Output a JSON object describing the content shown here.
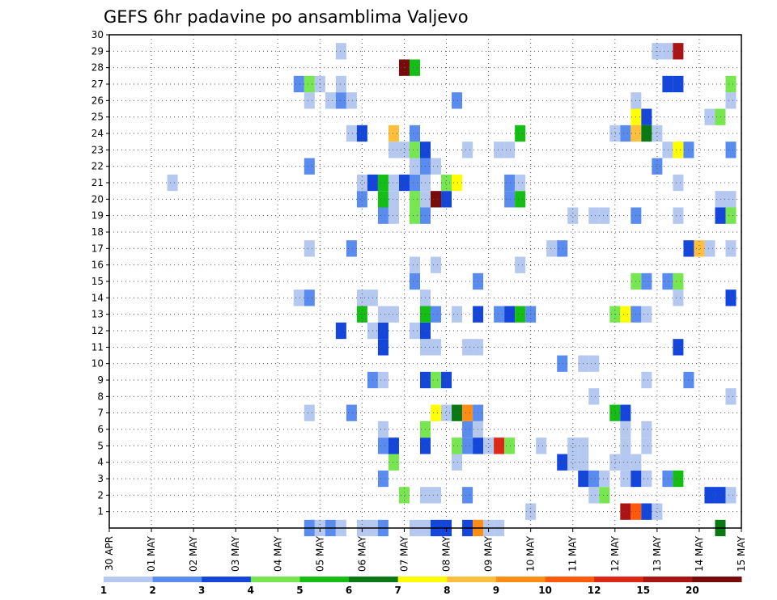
{
  "chart_data": {
    "type": "heatmap",
    "title": "GEFS 6hr padavine po ansamblima Valjevo",
    "x_tick_labels": [
      "30 APR",
      "01 MAY",
      "02 MAY",
      "03 MAY",
      "04 MAY",
      "05 MAY",
      "06 MAY",
      "07 MAY",
      "08 MAY",
      "09 MAY",
      "10 MAY",
      "11 MAY",
      "12 MAY",
      "13 MAY",
      "14 MAY",
      "15 MAY"
    ],
    "y_tick_labels": [
      "1",
      "2",
      "3",
      "4",
      "5",
      "6",
      "7",
      "8",
      "9",
      "10",
      "11",
      "12",
      "13",
      "14",
      "15",
      "16",
      "17",
      "18",
      "19",
      "20",
      "21",
      "22",
      "23",
      "24",
      "25",
      "26",
      "27",
      "28",
      "29",
      "30"
    ],
    "x_units": "6-hour steps from 30 APR 00Z (day + hour/24)",
    "ylim": [
      0,
      30
    ],
    "xlim": [
      0,
      15
    ],
    "grid": true,
    "colorbar": {
      "labels": [
        "1",
        "2",
        "3",
        "4",
        "5",
        "6",
        "7",
        "8",
        "9",
        "10",
        "12",
        "15",
        "20"
      ],
      "colors": [
        "#b4c8f0",
        "#5a8cf0",
        "#1446dc",
        "#78e650",
        "#14be14",
        "#0a7814",
        "#ffff00",
        "#ffbe3c",
        "#ff8c14",
        "#ff5a0a",
        "#dc2814",
        "#aa1414",
        "#780a0a"
      ]
    },
    "cells": [
      {
        "x": 6.0,
        "y": 0,
        "v": 1
      },
      {
        "x": 6.25,
        "y": 0,
        "v": 1
      },
      {
        "x": 6.5,
        "y": 0,
        "v": 2
      },
      {
        "x": 7.25,
        "y": 0,
        "v": 1
      },
      {
        "x": 7.5,
        "y": 0,
        "v": 1
      },
      {
        "x": 7.75,
        "y": 0,
        "v": 3
      },
      {
        "x": 8.0,
        "y": 0,
        "v": 3
      },
      {
        "x": 8.5,
        "y": 0,
        "v": 3
      },
      {
        "x": 8.75,
        "y": 0,
        "v": 9
      },
      {
        "x": 9.0,
        "y": 0,
        "v": 1
      },
      {
        "x": 9.25,
        "y": 0,
        "v": 1
      },
      {
        "x": 14.5,
        "y": 0,
        "v": 6
      },
      {
        "x": 4.75,
        "y": 0,
        "v": 2
      },
      {
        "x": 5.0,
        "y": 0,
        "v": 1
      },
      {
        "x": 5.25,
        "y": 0,
        "v": 2
      },
      {
        "x": 5.5,
        "y": 0,
        "v": 1
      },
      {
        "x": 10.0,
        "y": 1,
        "v": 1
      },
      {
        "x": 12.25,
        "y": 1,
        "v": 12
      },
      {
        "x": 12.5,
        "y": 1,
        "v": 10
      },
      {
        "x": 12.75,
        "y": 1,
        "v": 3
      },
      {
        "x": 13.0,
        "y": 1,
        "v": 1
      },
      {
        "x": 7.0,
        "y": 2,
        "v": 4
      },
      {
        "x": 7.5,
        "y": 2,
        "v": 1
      },
      {
        "x": 7.75,
        "y": 2,
        "v": 1
      },
      {
        "x": 8.5,
        "y": 2,
        "v": 2
      },
      {
        "x": 11.5,
        "y": 2,
        "v": 1
      },
      {
        "x": 11.75,
        "y": 2,
        "v": 4
      },
      {
        "x": 14.25,
        "y": 2,
        "v": 3
      },
      {
        "x": 14.5,
        "y": 2,
        "v": 3
      },
      {
        "x": 14.75,
        "y": 2,
        "v": 1
      },
      {
        "x": 6.5,
        "y": 3,
        "v": 2
      },
      {
        "x": 11.25,
        "y": 3,
        "v": 3
      },
      {
        "x": 11.5,
        "y": 3,
        "v": 2
      },
      {
        "x": 11.75,
        "y": 3,
        "v": 1
      },
      {
        "x": 12.25,
        "y": 3,
        "v": 1
      },
      {
        "x": 12.5,
        "y": 3,
        "v": 3
      },
      {
        "x": 12.75,
        "y": 3,
        "v": 1
      },
      {
        "x": 13.25,
        "y": 3,
        "v": 2
      },
      {
        "x": 13.5,
        "y": 3,
        "v": 5
      },
      {
        "x": 6.75,
        "y": 4,
        "v": 4
      },
      {
        "x": 8.25,
        "y": 4,
        "v": 1
      },
      {
        "x": 10.75,
        "y": 4,
        "v": 3
      },
      {
        "x": 11.0,
        "y": 4,
        "v": 1
      },
      {
        "x": 11.25,
        "y": 4,
        "v": 1
      },
      {
        "x": 12.0,
        "y": 4,
        "v": 1
      },
      {
        "x": 12.25,
        "y": 4,
        "v": 1
      },
      {
        "x": 12.5,
        "y": 4,
        "v": 1
      },
      {
        "x": 6.5,
        "y": 5,
        "v": 2
      },
      {
        "x": 6.75,
        "y": 5,
        "v": 3
      },
      {
        "x": 7.5,
        "y": 5,
        "v": 3
      },
      {
        "x": 8.25,
        "y": 5,
        "v": 4
      },
      {
        "x": 8.5,
        "y": 5,
        "v": 2
      },
      {
        "x": 8.75,
        "y": 5,
        "v": 3
      },
      {
        "x": 9.0,
        "y": 5,
        "v": 1
      },
      {
        "x": 9.25,
        "y": 5,
        "v": 11
      },
      {
        "x": 9.5,
        "y": 5,
        "v": 4
      },
      {
        "x": 10.25,
        "y": 5,
        "v": 1
      },
      {
        "x": 11.0,
        "y": 5,
        "v": 1
      },
      {
        "x": 11.25,
        "y": 5,
        "v": 1
      },
      {
        "x": 12.25,
        "y": 5,
        "v": 1
      },
      {
        "x": 12.75,
        "y": 5,
        "v": 1
      },
      {
        "x": 6.5,
        "y": 6,
        "v": 1
      },
      {
        "x": 7.5,
        "y": 6,
        "v": 4
      },
      {
        "x": 8.5,
        "y": 6,
        "v": 2
      },
      {
        "x": 8.75,
        "y": 6,
        "v": 1
      },
      {
        "x": 12.25,
        "y": 6,
        "v": 1
      },
      {
        "x": 12.75,
        "y": 6,
        "v": 1
      },
      {
        "x": 4.75,
        "y": 7,
        "v": 1
      },
      {
        "x": 5.75,
        "y": 7,
        "v": 2
      },
      {
        "x": 7.75,
        "y": 7,
        "v": 7
      },
      {
        "x": 8.0,
        "y": 7,
        "v": 1
      },
      {
        "x": 8.25,
        "y": 7,
        "v": 6
      },
      {
        "x": 8.5,
        "y": 7,
        "v": 9
      },
      {
        "x": 8.75,
        "y": 7,
        "v": 2
      },
      {
        "x": 12.0,
        "y": 7,
        "v": 5
      },
      {
        "x": 12.25,
        "y": 7,
        "v": 3
      },
      {
        "x": 11.5,
        "y": 8,
        "v": 1
      },
      {
        "x": 14.75,
        "y": 8,
        "v": 1
      },
      {
        "x": 6.25,
        "y": 9,
        "v": 2
      },
      {
        "x": 6.5,
        "y": 9,
        "v": 1
      },
      {
        "x": 7.5,
        "y": 9,
        "v": 3
      },
      {
        "x": 7.75,
        "y": 9,
        "v": 4
      },
      {
        "x": 8.0,
        "y": 9,
        "v": 3
      },
      {
        "x": 12.75,
        "y": 9,
        "v": 1
      },
      {
        "x": 13.75,
        "y": 9,
        "v": 2
      },
      {
        "x": 10.75,
        "y": 10,
        "v": 2
      },
      {
        "x": 11.25,
        "y": 10,
        "v": 1
      },
      {
        "x": 11.5,
        "y": 10,
        "v": 1
      },
      {
        "x": 6.5,
        "y": 11,
        "v": 3
      },
      {
        "x": 7.5,
        "y": 11,
        "v": 1
      },
      {
        "x": 7.75,
        "y": 11,
        "v": 1
      },
      {
        "x": 8.5,
        "y": 11,
        "v": 1
      },
      {
        "x": 8.75,
        "y": 11,
        "v": 1
      },
      {
        "x": 13.5,
        "y": 11,
        "v": 3
      },
      {
        "x": 5.5,
        "y": 12,
        "v": 3
      },
      {
        "x": 6.25,
        "y": 12,
        "v": 1
      },
      {
        "x": 6.5,
        "y": 12,
        "v": 3
      },
      {
        "x": 7.25,
        "y": 12,
        "v": 1
      },
      {
        "x": 7.5,
        "y": 12,
        "v": 3
      },
      {
        "x": 6.0,
        "y": 13,
        "v": 5
      },
      {
        "x": 6.5,
        "y": 13,
        "v": 1
      },
      {
        "x": 6.75,
        "y": 13,
        "v": 1
      },
      {
        "x": 7.5,
        "y": 13,
        "v": 5
      },
      {
        "x": 7.75,
        "y": 13,
        "v": 2
      },
      {
        "x": 8.25,
        "y": 13,
        "v": 1
      },
      {
        "x": 8.75,
        "y": 13,
        "v": 3
      },
      {
        "x": 9.25,
        "y": 13,
        "v": 2
      },
      {
        "x": 9.5,
        "y": 13,
        "v": 3
      },
      {
        "x": 9.75,
        "y": 13,
        "v": 5
      },
      {
        "x": 10.0,
        "y": 13,
        "v": 2
      },
      {
        "x": 12.0,
        "y": 13,
        "v": 4
      },
      {
        "x": 12.25,
        "y": 13,
        "v": 7
      },
      {
        "x": 12.5,
        "y": 13,
        "v": 2
      },
      {
        "x": 12.75,
        "y": 13,
        "v": 1
      },
      {
        "x": 4.5,
        "y": 14,
        "v": 1
      },
      {
        "x": 4.75,
        "y": 14,
        "v": 2
      },
      {
        "x": 6.0,
        "y": 14,
        "v": 1
      },
      {
        "x": 6.25,
        "y": 14,
        "v": 1
      },
      {
        "x": 7.5,
        "y": 14,
        "v": 1
      },
      {
        "x": 13.5,
        "y": 14,
        "v": 1
      },
      {
        "x": 14.75,
        "y": 14,
        "v": 3
      },
      {
        "x": 7.25,
        "y": 15,
        "v": 2
      },
      {
        "x": 8.75,
        "y": 15,
        "v": 2
      },
      {
        "x": 12.5,
        "y": 15,
        "v": 4
      },
      {
        "x": 12.75,
        "y": 15,
        "v": 2
      },
      {
        "x": 13.25,
        "y": 15,
        "v": 2
      },
      {
        "x": 13.5,
        "y": 15,
        "v": 4
      },
      {
        "x": 7.25,
        "y": 16,
        "v": 1
      },
      {
        "x": 7.75,
        "y": 16,
        "v": 1
      },
      {
        "x": 9.75,
        "y": 16,
        "v": 1
      },
      {
        "x": 4.75,
        "y": 17,
        "v": 1
      },
      {
        "x": 5.75,
        "y": 17,
        "v": 2
      },
      {
        "x": 10.5,
        "y": 17,
        "v": 1
      },
      {
        "x": 10.75,
        "y": 17,
        "v": 2
      },
      {
        "x": 13.75,
        "y": 17,
        "v": 3
      },
      {
        "x": 14.0,
        "y": 17,
        "v": 8
      },
      {
        "x": 14.25,
        "y": 17,
        "v": 1
      },
      {
        "x": 14.75,
        "y": 17,
        "v": 1
      },
      {
        "x": 6.5,
        "y": 19,
        "v": 2
      },
      {
        "x": 6.75,
        "y": 19,
        "v": 1
      },
      {
        "x": 7.25,
        "y": 19,
        "v": 4
      },
      {
        "x": 7.5,
        "y": 19,
        "v": 2
      },
      {
        "x": 11.0,
        "y": 19,
        "v": 1
      },
      {
        "x": 11.5,
        "y": 19,
        "v": 1
      },
      {
        "x": 11.75,
        "y": 19,
        "v": 1
      },
      {
        "x": 12.5,
        "y": 19,
        "v": 2
      },
      {
        "x": 13.5,
        "y": 19,
        "v": 1
      },
      {
        "x": 14.5,
        "y": 19,
        "v": 3
      },
      {
        "x": 14.75,
        "y": 19,
        "v": 4
      },
      {
        "x": 6.0,
        "y": 20,
        "v": 2
      },
      {
        "x": 6.5,
        "y": 20,
        "v": 5
      },
      {
        "x": 6.75,
        "y": 20,
        "v": 1
      },
      {
        "x": 7.25,
        "y": 20,
        "v": 4
      },
      {
        "x": 7.5,
        "y": 20,
        "v": 1
      },
      {
        "x": 7.75,
        "y": 20,
        "v": 13
      },
      {
        "x": 8.0,
        "y": 20,
        "v": 3
      },
      {
        "x": 9.5,
        "y": 20,
        "v": 2
      },
      {
        "x": 9.75,
        "y": 20,
        "v": 5
      },
      {
        "x": 14.5,
        "y": 20,
        "v": 1
      },
      {
        "x": 14.75,
        "y": 20,
        "v": 1
      },
      {
        "x": 1.5,
        "y": 21,
        "v": 1
      },
      {
        "x": 6.0,
        "y": 21,
        "v": 1
      },
      {
        "x": 6.25,
        "y": 21,
        "v": 3
      },
      {
        "x": 6.5,
        "y": 21,
        "v": 5
      },
      {
        "x": 6.75,
        "y": 21,
        "v": 1
      },
      {
        "x": 7.0,
        "y": 21,
        "v": 3
      },
      {
        "x": 7.25,
        "y": 21,
        "v": 2
      },
      {
        "x": 7.5,
        "y": 21,
        "v": 1
      },
      {
        "x": 8.0,
        "y": 21,
        "v": 4
      },
      {
        "x": 8.25,
        "y": 21,
        "v": 7
      },
      {
        "x": 9.5,
        "y": 21,
        "v": 2
      },
      {
        "x": 9.75,
        "y": 21,
        "v": 1
      },
      {
        "x": 13.5,
        "y": 21,
        "v": 1
      },
      {
        "x": 4.75,
        "y": 22,
        "v": 2
      },
      {
        "x": 7.25,
        "y": 22,
        "v": 1
      },
      {
        "x": 7.5,
        "y": 22,
        "v": 2
      },
      {
        "x": 7.75,
        "y": 22,
        "v": 1
      },
      {
        "x": 13.0,
        "y": 22,
        "v": 2
      },
      {
        "x": 6.75,
        "y": 23,
        "v": 1
      },
      {
        "x": 7.0,
        "y": 23,
        "v": 1
      },
      {
        "x": 7.25,
        "y": 23,
        "v": 4
      },
      {
        "x": 7.5,
        "y": 23,
        "v": 3
      },
      {
        "x": 8.5,
        "y": 23,
        "v": 1
      },
      {
        "x": 9.25,
        "y": 23,
        "v": 1
      },
      {
        "x": 9.5,
        "y": 23,
        "v": 1
      },
      {
        "x": 13.25,
        "y": 23,
        "v": 1
      },
      {
        "x": 13.5,
        "y": 23,
        "v": 7
      },
      {
        "x": 13.75,
        "y": 23,
        "v": 2
      },
      {
        "x": 14.75,
        "y": 23,
        "v": 2
      },
      {
        "x": 5.75,
        "y": 24,
        "v": 1
      },
      {
        "x": 6.0,
        "y": 24,
        "v": 3
      },
      {
        "x": 6.75,
        "y": 24,
        "v": 8
      },
      {
        "x": 7.25,
        "y": 24,
        "v": 2
      },
      {
        "x": 9.75,
        "y": 24,
        "v": 5
      },
      {
        "x": 12.0,
        "y": 24,
        "v": 1
      },
      {
        "x": 12.25,
        "y": 24,
        "v": 2
      },
      {
        "x": 12.5,
        "y": 24,
        "v": 8
      },
      {
        "x": 12.75,
        "y": 24,
        "v": 6
      },
      {
        "x": 13.0,
        "y": 24,
        "v": 1
      },
      {
        "x": 12.5,
        "y": 25,
        "v": 7
      },
      {
        "x": 12.75,
        "y": 25,
        "v": 3
      },
      {
        "x": 14.25,
        "y": 25,
        "v": 1
      },
      {
        "x": 14.5,
        "y": 25,
        "v": 4
      },
      {
        "x": 4.75,
        "y": 26,
        "v": 1
      },
      {
        "x": 5.25,
        "y": 26,
        "v": 1
      },
      {
        "x": 5.5,
        "y": 26,
        "v": 2
      },
      {
        "x": 5.75,
        "y": 26,
        "v": 1
      },
      {
        "x": 8.25,
        "y": 26,
        "v": 2
      },
      {
        "x": 12.5,
        "y": 26,
        "v": 1
      },
      {
        "x": 14.75,
        "y": 26,
        "v": 1
      },
      {
        "x": 4.5,
        "y": 27,
        "v": 2
      },
      {
        "x": 4.75,
        "y": 27,
        "v": 4
      },
      {
        "x": 5.0,
        "y": 27,
        "v": 1
      },
      {
        "x": 5.5,
        "y": 27,
        "v": 1
      },
      {
        "x": 13.25,
        "y": 27,
        "v": 3
      },
      {
        "x": 13.5,
        "y": 27,
        "v": 3
      },
      {
        "x": 14.75,
        "y": 27,
        "v": 4
      },
      {
        "x": 7.0,
        "y": 28,
        "v": 13
      },
      {
        "x": 7.25,
        "y": 28,
        "v": 5
      },
      {
        "x": 5.5,
        "y": 29,
        "v": 1
      },
      {
        "x": 13.0,
        "y": 29,
        "v": 1
      },
      {
        "x": 13.25,
        "y": 29,
        "v": 1
      },
      {
        "x": 13.5,
        "y": 29,
        "v": 12
      }
    ]
  }
}
